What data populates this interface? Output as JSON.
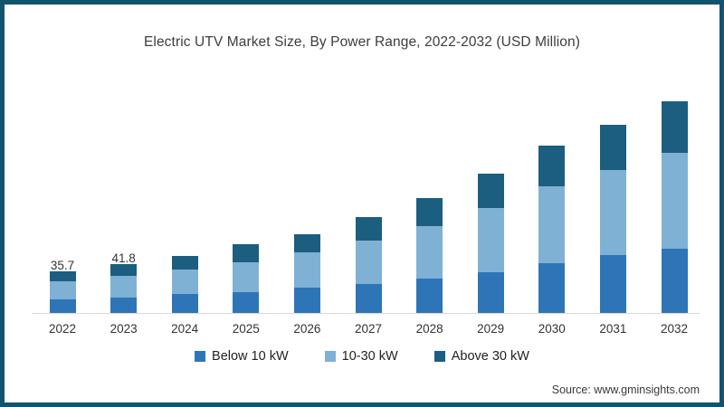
{
  "title": "Electric UTV Market Size, By Power Range, 2022-2032 (USD Million)",
  "source": "Source: www.gminsights.com",
  "colors": {
    "frame_border": "#14536e",
    "axis_line": "#d9d9d9",
    "below_10kw": "#2e75b8",
    "kw_10_30": "#7fb1d4",
    "above_30kw": "#1b5e80"
  },
  "chart_data": {
    "type": "bar",
    "stacked": true,
    "title": "Electric UTV Market Size, By Power Range, 2022-2032 (USD Million)",
    "xlabel": "",
    "ylabel": "USD Million",
    "ylim": [
      0,
      200
    ],
    "grid": false,
    "legend_position": "bottom",
    "categories": [
      "2022",
      "2023",
      "2024",
      "2025",
      "2026",
      "2027",
      "2028",
      "2029",
      "2030",
      "2031",
      "2032"
    ],
    "series": [
      {
        "name": "Below 10 kW",
        "color": "#2e75b8",
        "values": [
          11.5,
          12.9,
          16.0,
          18.1,
          21.2,
          24.5,
          29.4,
          34.6,
          42.3,
          49.1,
          54.7
        ]
      },
      {
        "name": "10-30 kW",
        "color": "#7fb1d4",
        "values": [
          15.8,
          19.0,
          20.7,
          25.0,
          30.2,
          37.2,
          44.4,
          55.0,
          65.3,
          72.8,
          81.3
        ]
      },
      {
        "name": "Above 30 kW",
        "color": "#1b5e80",
        "values": [
          8.4,
          9.9,
          12.1,
          15.5,
          15.5,
          19.9,
          24.0,
          29.2,
          34.4,
          38.2,
          44.3
        ]
      }
    ],
    "totals": [
      35.7,
      41.8,
      48.8,
      58.6,
      66.9,
      81.6,
      97.8,
      118.8,
      142.0,
      160.1,
      180.3
    ],
    "data_labels": [
      "35.7",
      "41.8",
      null,
      null,
      null,
      null,
      null,
      null,
      null,
      null,
      null
    ]
  }
}
